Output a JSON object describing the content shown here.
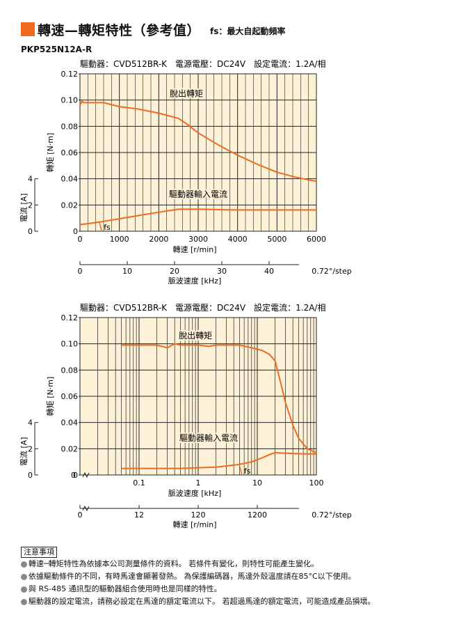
{
  "header": {
    "title": "轉速—轉矩特性（參考值）",
    "subtitle": "fs：最大自起動頻率",
    "accent_color": "#ee6b1e"
  },
  "model": "PKP525N12A-R",
  "chart_data": [
    {
      "type": "line",
      "caption": "驅動器：CVD512BR-K　電源電壓：DC24V　設定電流：1.2A/相",
      "xscale": "linear",
      "xlabel": "轉速 [r/min]",
      "xlim": [
        0,
        6000
      ],
      "x_ticks": [
        "0",
        "1000",
        "2000",
        "3000",
        "4000",
        "5000",
        "6000"
      ],
      "ylabel": "轉矩 [N·m]",
      "ylim": [
        0,
        0.12
      ],
      "y_ticks": [
        "0",
        "0.02",
        "0.04",
        "0.06",
        "0.08",
        "0.10",
        "0.12"
      ],
      "y2label": "電流 [A]",
      "y2lim": [
        0,
        4
      ],
      "y2_ticks": [
        "0",
        "2",
        "4"
      ],
      "x2label": "脈波速度 [kHz]",
      "x2_ticks": [
        "0",
        "10",
        "20",
        "30",
        "40"
      ],
      "x2_note": "0.72°/step",
      "grid": true,
      "series": [
        {
          "name": "脫出轉矩",
          "color": "#ee6b1e",
          "x": [
            0,
            50,
            100,
            300,
            600,
            1000,
            1500,
            2000,
            2500,
            2700,
            3000,
            3500,
            4000,
            4500,
            5000,
            5500,
            6000
          ],
          "y": [
            0.096,
            0.099,
            0.098,
            0.098,
            0.098,
            0.095,
            0.093,
            0.09,
            0.086,
            0.082,
            0.075,
            0.066,
            0.058,
            0.051,
            0.045,
            0.041,
            0.038
          ]
        },
        {
          "name": "驅動器輸入電流",
          "color": "#ee6b1e",
          "x": [
            0,
            500,
            1000,
            1500,
            2000,
            2500,
            3000,
            4000,
            5000,
            6000
          ],
          "y": [
            0.5,
            0.7,
            0.95,
            1.2,
            1.45,
            1.68,
            1.68,
            1.62,
            1.62,
            1.62
          ]
        }
      ],
      "annotations": [
        {
          "text": "fs",
          "x": 550,
          "y": 0
        }
      ]
    },
    {
      "type": "line",
      "caption": "驅動器：CVD512BR-K　電源電壓：DC24V　設定電流：1.2A/相",
      "xscale": "log",
      "xlabel": "脈波速度 [kHz]",
      "xlim": [
        0.01,
        100
      ],
      "x_ticks": [
        "0.1",
        "1",
        "10",
        "100"
      ],
      "x_zero_label": "0",
      "ylabel": "轉矩 [N·m]",
      "ylim": [
        0,
        0.12
      ],
      "y_ticks": [
        "0",
        "0.02",
        "0.04",
        "0.06",
        "0.08",
        "0.10",
        "0.12"
      ],
      "y2label": "電流 [A]",
      "y2lim": [
        0,
        4
      ],
      "y2_ticks": [
        "0",
        "2",
        "4"
      ],
      "x2label": "轉速 [r/min]",
      "x2_ticks": [
        "0",
        "12",
        "120",
        "1200"
      ],
      "x2_note": "0.72°/step",
      "grid": true,
      "series": [
        {
          "name": "脫出轉矩",
          "color": "#ee6b1e",
          "x": [
            0.05,
            0.1,
            0.2,
            0.3,
            0.4,
            0.5,
            0.6,
            0.8,
            1,
            1.5,
            2,
            3,
            5,
            8,
            12,
            16,
            20,
            25,
            30,
            40,
            50,
            70,
            100
          ],
          "y": [
            0.099,
            0.099,
            0.099,
            0.097,
            0.1,
            0.099,
            0.099,
            0.099,
            0.099,
            0.098,
            0.099,
            0.099,
            0.099,
            0.097,
            0.095,
            0.092,
            0.087,
            0.07,
            0.055,
            0.038,
            0.028,
            0.02,
            0.017
          ]
        },
        {
          "name": "驅動器輸入電流",
          "color": "#ee6b1e",
          "x": [
            0.05,
            0.1,
            0.5,
            1,
            2,
            5,
            8,
            12,
            16,
            20,
            25,
            50,
            100
          ],
          "y": [
            0.5,
            0.5,
            0.5,
            0.55,
            0.6,
            0.8,
            1.0,
            1.3,
            1.55,
            1.7,
            1.68,
            1.62,
            1.6
          ]
        }
      ],
      "annotations": [
        {
          "text": "fs",
          "x": 5.5,
          "y": 0
        }
      ]
    }
  ],
  "notes": {
    "title": "注意事項",
    "items": [
      "轉速─轉矩特性為依據本公司測量條件的資料。 若條件有變化，則特性可能產生變化。",
      "依據驅動條件的不同，有時馬達會顯著發熱。 為保護編碼器，馬達外殼溫度請在85°C以下使用。",
      "與 RS-485 通訊型的驅動器組合使用時也是同樣的特性。",
      "驅動器的設定電流，請務必設定在馬達的額定電流以下。 若超過馬達的額定電流，可能造成產品損壞。"
    ]
  }
}
